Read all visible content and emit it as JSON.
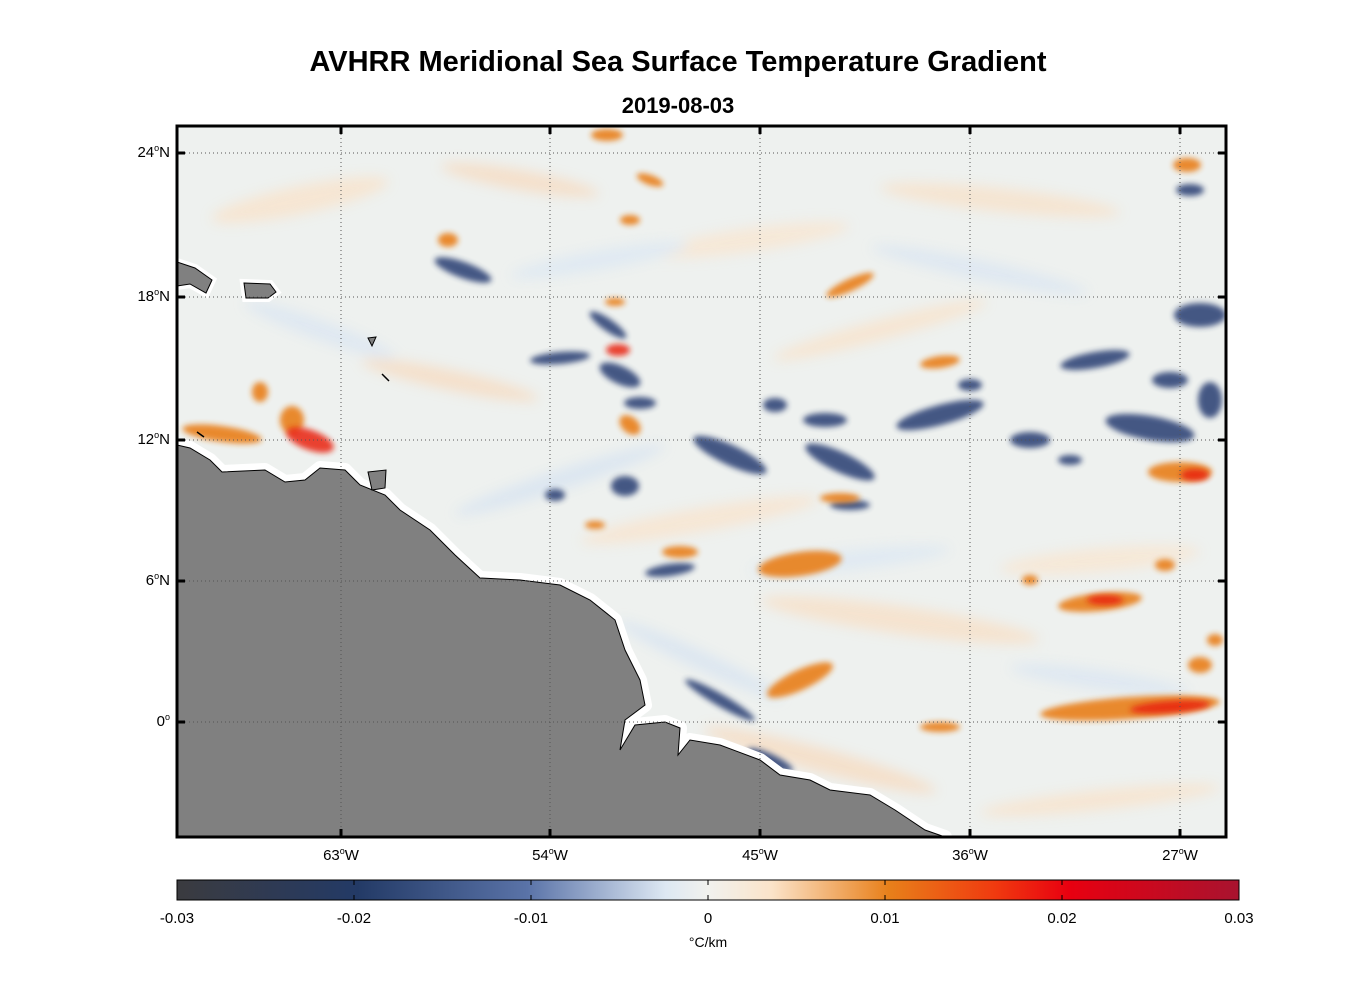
{
  "title": "AVHRR Meridional Sea Surface Temperature Gradient",
  "subtitle": "2019-08-03",
  "lat_labels": [
    {
      "deg": "24",
      "hemi": "N"
    },
    {
      "deg": "18",
      "hemi": "N"
    },
    {
      "deg": "12",
      "hemi": "N"
    },
    {
      "deg": "6",
      "hemi": "N"
    },
    {
      "deg": "0",
      "hemi": ""
    }
  ],
  "lon_labels": [
    {
      "deg": "63",
      "hemi": "W"
    },
    {
      "deg": "54",
      "hemi": "W"
    },
    {
      "deg": "45",
      "hemi": "W"
    },
    {
      "deg": "36",
      "hemi": "W"
    },
    {
      "deg": "27",
      "hemi": "W"
    }
  ],
  "colorbar": {
    "ticks": [
      "-0.03",
      "-0.02",
      "-0.01",
      "0",
      "0.01",
      "0.02",
      "0.03"
    ],
    "unit": "°C/km",
    "colors": [
      "#3b3b3f",
      "#233a66",
      "#5a73a8",
      "#dde8f3",
      "#f7f0e6",
      "#fbe3c9",
      "#e8801a",
      "#f03a0f",
      "#e80010",
      "#a8132f"
    ]
  },
  "colors": {
    "land": "#808080",
    "ocean_neutral": "#edf0ee",
    "warm": "#e87d1a",
    "cold": "#34497a",
    "hot": "#e8200f"
  }
}
